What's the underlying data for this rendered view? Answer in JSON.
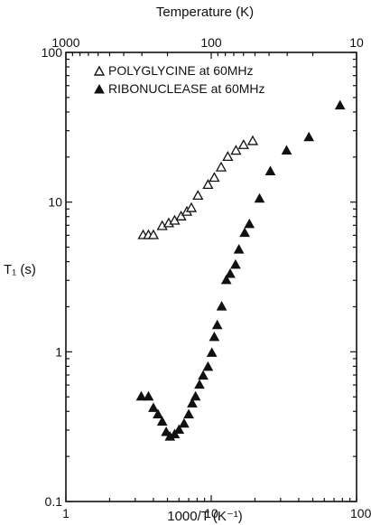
{
  "chart_data": {
    "type": "scatter",
    "title": "",
    "xlabel": "1000/T (K⁻¹)",
    "ylabel": "T₁ (s)",
    "x2label": "Temperature (K)",
    "xscale": "log",
    "yscale": "log",
    "xlim": [
      1,
      100
    ],
    "ylim": [
      0.1,
      100
    ],
    "xticks": [
      "1",
      "10",
      "100"
    ],
    "yticks": [
      "0.1",
      "1",
      "10",
      "100"
    ],
    "x2ticks": [
      "1000",
      "100",
      "10"
    ],
    "grid": false,
    "legend_position": "top-left",
    "series": [
      {
        "name": "POLYGLYCINE at 60MHz",
        "marker": "open-triangle",
        "points": [
          [
            3.4,
            6.0
          ],
          [
            3.7,
            6.0
          ],
          [
            4.0,
            6.0
          ],
          [
            4.6,
            6.9
          ],
          [
            5.1,
            7.2
          ],
          [
            5.6,
            7.5
          ],
          [
            6.2,
            8.0
          ],
          [
            6.8,
            8.6
          ],
          [
            7.3,
            9.1
          ],
          [
            8.1,
            11.0
          ],
          [
            9.5,
            13.0
          ],
          [
            10.5,
            14.5
          ],
          [
            11.7,
            17.0
          ],
          [
            13.0,
            20.0
          ],
          [
            14.8,
            22.0
          ],
          [
            16.7,
            24.0
          ],
          [
            19.3,
            25.5
          ]
        ]
      },
      {
        "name": "RIBONUCLEASE at 60MHz",
        "marker": "filled-triangle",
        "points": [
          [
            3.3,
            0.5
          ],
          [
            3.7,
            0.5
          ],
          [
            4.0,
            0.42
          ],
          [
            4.3,
            0.38
          ],
          [
            4.6,
            0.34
          ],
          [
            4.9,
            0.29
          ],
          [
            5.2,
            0.27
          ],
          [
            5.6,
            0.28
          ],
          [
            6.0,
            0.3
          ],
          [
            6.5,
            0.33
          ],
          [
            7.0,
            0.38
          ],
          [
            7.4,
            0.45
          ],
          [
            7.8,
            0.5
          ],
          [
            8.3,
            0.6
          ],
          [
            8.8,
            0.69
          ],
          [
            9.5,
            0.79
          ],
          [
            10.1,
            0.98
          ],
          [
            10.5,
            1.25
          ],
          [
            11.0,
            1.5
          ],
          [
            11.8,
            2.0
          ],
          [
            12.7,
            3.0
          ],
          [
            13.5,
            3.3
          ],
          [
            14.7,
            3.8
          ],
          [
            15.5,
            4.8
          ],
          [
            17.0,
            6.2
          ],
          [
            18.3,
            7.1
          ],
          [
            21.5,
            10.5
          ],
          [
            25.5,
            16.0
          ],
          [
            33.0,
            22.0
          ],
          [
            47.0,
            27.0
          ],
          [
            77.0,
            44.0
          ]
        ]
      }
    ]
  }
}
